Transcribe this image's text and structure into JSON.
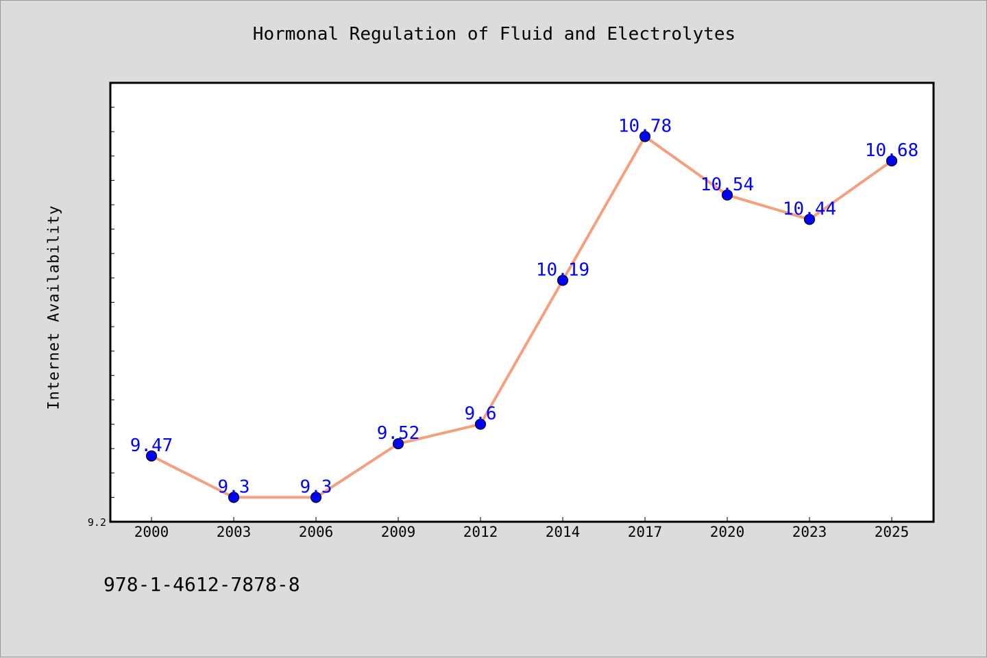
{
  "chart_data": {
    "type": "line",
    "title": "Hormonal Regulation of Fluid and Electrolytes",
    "xlabel": "",
    "ylabel": "Internet Availability",
    "categories": [
      "2000",
      "2003",
      "2006",
      "2009",
      "2012",
      "2014",
      "2017",
      "2020",
      "2023",
      "2025"
    ],
    "series": [
      {
        "values": [
          9.47,
          9.3,
          9.3,
          9.52,
          9.6,
          10.19,
          10.78,
          10.54,
          10.44,
          10.68
        ],
        "data_labels": [
          "9.47",
          "9.3",
          "9.3",
          "9.52",
          "9.6",
          "10.19",
          "10.78",
          "10.54",
          "10.44",
          "10.68"
        ]
      }
    ],
    "ylim": [
      9.2,
      11.0
    ],
    "ytick_label": "9.2",
    "grid": false,
    "legend": "none",
    "colors": {
      "line": "#f4a07e",
      "marker": "#0000ff",
      "data_label": "#0000ff",
      "background": "#dcdcdc",
      "plot_area": "#ffffff"
    }
  },
  "footer_text": "978-1-4612-7878-8"
}
